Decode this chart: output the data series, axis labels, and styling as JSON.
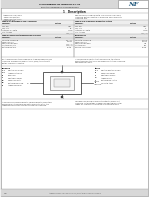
{
  "bg": "#f0f0f0",
  "page_bg": "#ffffff",
  "header_bg": "#d8d8d8",
  "footer_bg": "#d8d8d8",
  "border": "#888888",
  "text_dark": "#111111",
  "text_mid": "#333333",
  "text_light": "#555555",
  "logo_bg": "#ffffff",
  "logo_color": "#1a5276",
  "table_bg": "#eeeeee",
  "table_bg2": "#e8e8e8",
  "line_color": "#999999",
  "diag_color": "#444444"
}
